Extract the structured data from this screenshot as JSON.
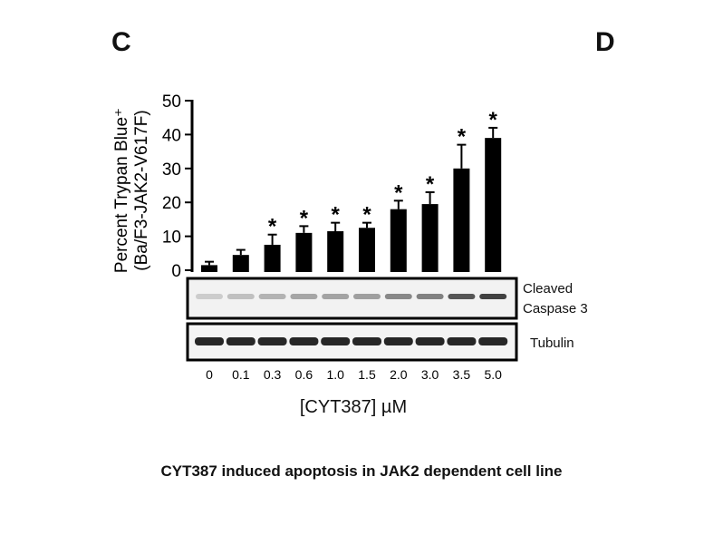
{
  "panels": {
    "left": "C",
    "right": "D"
  },
  "caption": "CYT387 induced apoptosis in JAK2 dependent cell line",
  "blot": {
    "cleaved_caspase_line1": "Cleaved",
    "cleaved_caspase_line2": "Caspase 3",
    "tubulin": "Tubulin"
  },
  "chart_data": {
    "type": "bar",
    "xlabel": "[CYT387] µM",
    "ylabel_line1": "Percent Trypan Blue⁺",
    "ylabel_line2": "(Ba/F3-JAK2-V617F)",
    "categories": [
      "0",
      "0.1",
      "0.3",
      "0.6",
      "1.0",
      "1.5",
      "2.0",
      "3.0",
      "3.5",
      "5.0"
    ],
    "values": [
      1.5,
      4.5,
      7.5,
      11,
      11.5,
      12.5,
      18,
      19.5,
      30,
      39
    ],
    "errors": [
      1,
      1.5,
      3,
      2,
      2.5,
      1.5,
      2.5,
      3.5,
      7,
      3
    ],
    "significant": [
      false,
      false,
      true,
      true,
      true,
      true,
      true,
      true,
      true,
      true
    ],
    "significance_marker": "*",
    "ylim": [
      0,
      50
    ],
    "yticks": [
      0,
      10,
      20,
      30,
      40,
      50
    ],
    "grid": false,
    "legend": "none"
  }
}
